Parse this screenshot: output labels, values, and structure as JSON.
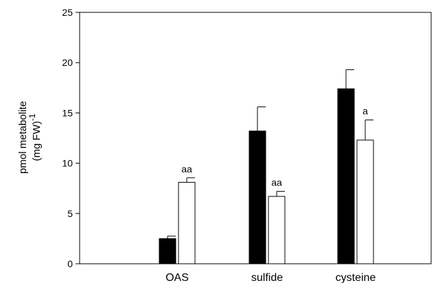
{
  "chart_data": {
    "type": "bar",
    "categories": [
      "OAS",
      "sulfide",
      "cysteine"
    ],
    "series": [
      {
        "fill": "#000000",
        "values": [
          2.5,
          13.2,
          17.4
        ],
        "errors": [
          0.25,
          2.4,
          1.9
        ],
        "annotations": [
          "",
          "",
          ""
        ]
      },
      {
        "fill": "#ffffff",
        "values": [
          8.1,
          6.7,
          12.3
        ],
        "errors": [
          0.45,
          0.5,
          2.0
        ],
        "annotations": [
          "aa",
          "aa",
          "a"
        ]
      }
    ],
    "ylabel_line1": "pmol metabolite",
    "ylabel_line2": "(mg FW)",
    "ylabel_superscript": "-1",
    "ylim": [
      0,
      25
    ],
    "yticks": [
      "0",
      "5",
      "10",
      "15",
      "20",
      "25"
    ],
    "grid": false
  }
}
